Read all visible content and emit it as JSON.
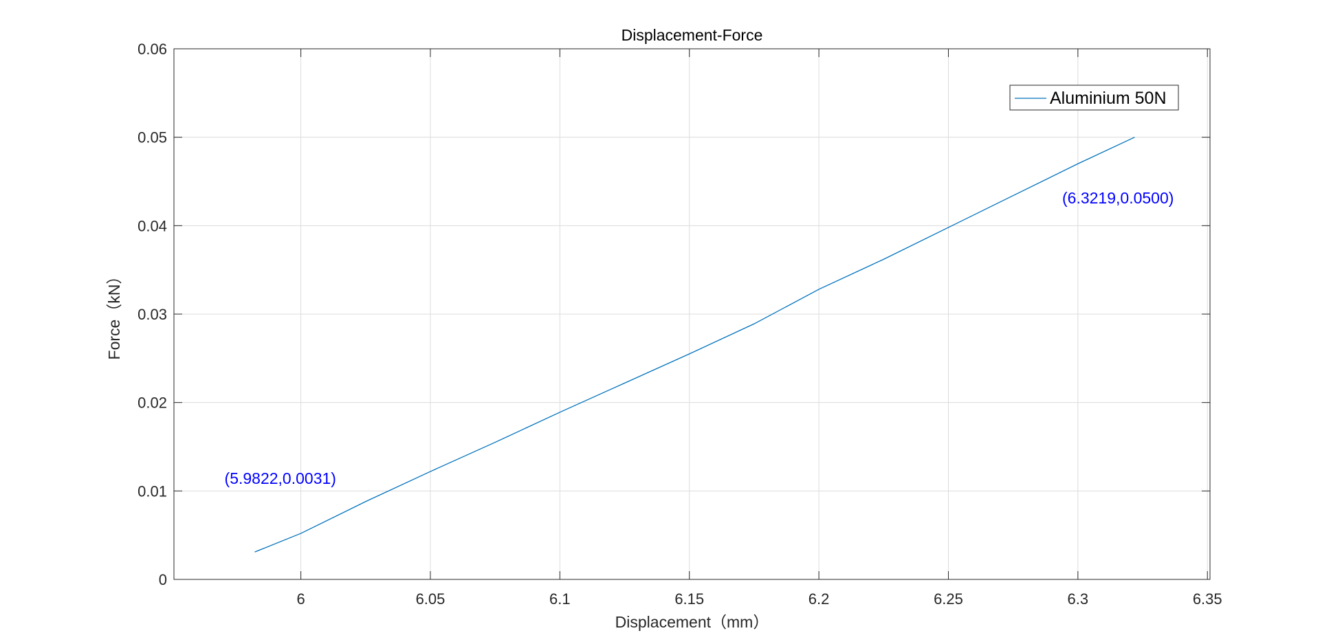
{
  "chart_data": {
    "type": "line",
    "title": "Displacement-Force",
    "xlabel": "Displacement（mm）",
    "ylabel": "Force（kN）",
    "xlim": [
      5.951,
      6.351
    ],
    "ylim": [
      0,
      0.06
    ],
    "xticks": [
      6,
      6.05,
      6.1,
      6.15,
      6.2,
      6.25,
      6.3,
      6.35
    ],
    "xtick_labels": [
      "6",
      "6.05",
      "6.1",
      "6.15",
      "6.2",
      "6.25",
      "6.3",
      "6.35"
    ],
    "yticks": [
      0,
      0.01,
      0.02,
      0.03,
      0.04,
      0.05,
      0.06
    ],
    "ytick_labels": [
      "0",
      "0.01",
      "0.02",
      "0.03",
      "0.04",
      "0.05",
      "0.06"
    ],
    "grid": true,
    "legend_position": "top-right",
    "series": [
      {
        "name": "Aluminium 50N",
        "color": "#0072bd",
        "x": [
          5.9822,
          6.0,
          6.025,
          6.05,
          6.075,
          6.1,
          6.125,
          6.15,
          6.175,
          6.2,
          6.225,
          6.25,
          6.275,
          6.3,
          6.3219
        ],
        "y": [
          0.0031,
          0.0052,
          0.0088,
          0.0122,
          0.0155,
          0.0189,
          0.0222,
          0.0255,
          0.0289,
          0.0328,
          0.0362,
          0.0398,
          0.0434,
          0.047,
          0.05
        ]
      }
    ],
    "annotations": [
      {
        "text": "(5.9822,0.0031)",
        "x": 5.9822,
        "y": 0.0031,
        "color": "#0000ff"
      },
      {
        "text": "(6.3219,0.0500)",
        "x": 6.3219,
        "y": 0.05,
        "color": "#0000ff"
      }
    ]
  }
}
